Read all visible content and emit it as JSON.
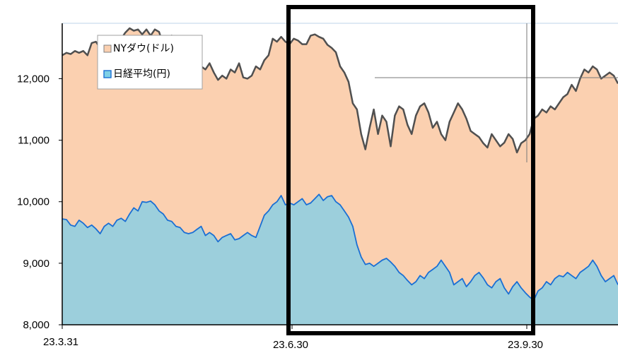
{
  "chart_data": {
    "type": "area",
    "x_ticks": [
      "23.3.31",
      "23.6.30",
      "23.9.30"
    ],
    "y_ticks": [
      "8,000",
      "9,000",
      "10,000",
      "11,000",
      "12,000"
    ],
    "ylim": [
      8000,
      12900
    ],
    "series": [
      {
        "name": "NYダウ(ドル)",
        "color": "#fbd0b0",
        "line_color": "#505050",
        "values": [
          12380,
          12420,
          12400,
          12450,
          12420,
          12450,
          12380,
          12580,
          12600,
          12500,
          12560,
          12450,
          12430,
          12520,
          12650,
          12750,
          12820,
          12780,
          12800,
          12720,
          12800,
          12700,
          12800,
          12760,
          12550,
          12600,
          12700,
          12650,
          12600,
          12500,
          12400,
          12420,
          12350,
          12200,
          12150,
          12250,
          12100,
          11980,
          12050,
          12000,
          12150,
          12100,
          12250,
          12020,
          12000,
          12050,
          12200,
          12150,
          12300,
          12380,
          12650,
          12600,
          12680,
          12600,
          12560,
          12650,
          12620,
          12560,
          12560,
          12700,
          12720,
          12680,
          12650,
          12550,
          12500,
          12430,
          12200,
          12100,
          11950,
          11600,
          11500,
          11100,
          10850,
          11200,
          11500,
          11100,
          11400,
          11300,
          10900,
          11400,
          11550,
          11500,
          11250,
          11100,
          11400,
          11550,
          11600,
          11450,
          11200,
          11300,
          11100,
          11000,
          11300,
          11450,
          11600,
          11500,
          11350,
          11150,
          11100,
          11050,
          10950,
          10880,
          11100,
          11000,
          10900,
          10960,
          11100,
          11020,
          10800,
          10950,
          11000,
          11100,
          11350,
          11400,
          11500,
          11450,
          11550,
          11500,
          11600,
          11700,
          11750,
          11900,
          11800,
          12000,
          12150,
          12100,
          12200,
          12150,
          12000,
          12050,
          12100,
          12050,
          11920
        ]
      },
      {
        "name": "日経平均(円)",
        "color": "#9ccfdc",
        "line_color": "#1a6fd4",
        "values": [
          9720,
          9710,
          9620,
          9600,
          9700,
          9650,
          9580,
          9620,
          9560,
          9480,
          9600,
          9650,
          9600,
          9700,
          9730,
          9680,
          9800,
          9900,
          9850,
          10000,
          9990,
          10010,
          9950,
          9850,
          9800,
          9700,
          9680,
          9600,
          9580,
          9500,
          9480,
          9500,
          9550,
          9600,
          9450,
          9500,
          9450,
          9350,
          9420,
          9450,
          9480,
          9380,
          9400,
          9450,
          9500,
          9450,
          9420,
          9600,
          9780,
          9850,
          9950,
          10000,
          10100,
          9950,
          9980,
          9950,
          10000,
          10050,
          9950,
          9980,
          10050,
          10120,
          10020,
          10080,
          10100,
          10000,
          9950,
          9850,
          9750,
          9600,
          9300,
          9100,
          8980,
          9000,
          8950,
          9000,
          9050,
          9080,
          9020,
          8950,
          8850,
          8800,
          8720,
          8650,
          8700,
          8800,
          8750,
          8850,
          8900,
          8950,
          9050,
          8950,
          8850,
          8650,
          8700,
          8750,
          8620,
          8700,
          8800,
          8850,
          8760,
          8650,
          8600,
          8700,
          8750,
          8600,
          8500,
          8620,
          8700,
          8600,
          8520,
          8450,
          8400,
          8550,
          8600,
          8700,
          8650,
          8750,
          8800,
          8780,
          8850,
          8800,
          8750,
          8850,
          8900,
          8950,
          9050,
          8950,
          8800,
          8700,
          8750,
          8800,
          8650
        ]
      }
    ]
  }
}
